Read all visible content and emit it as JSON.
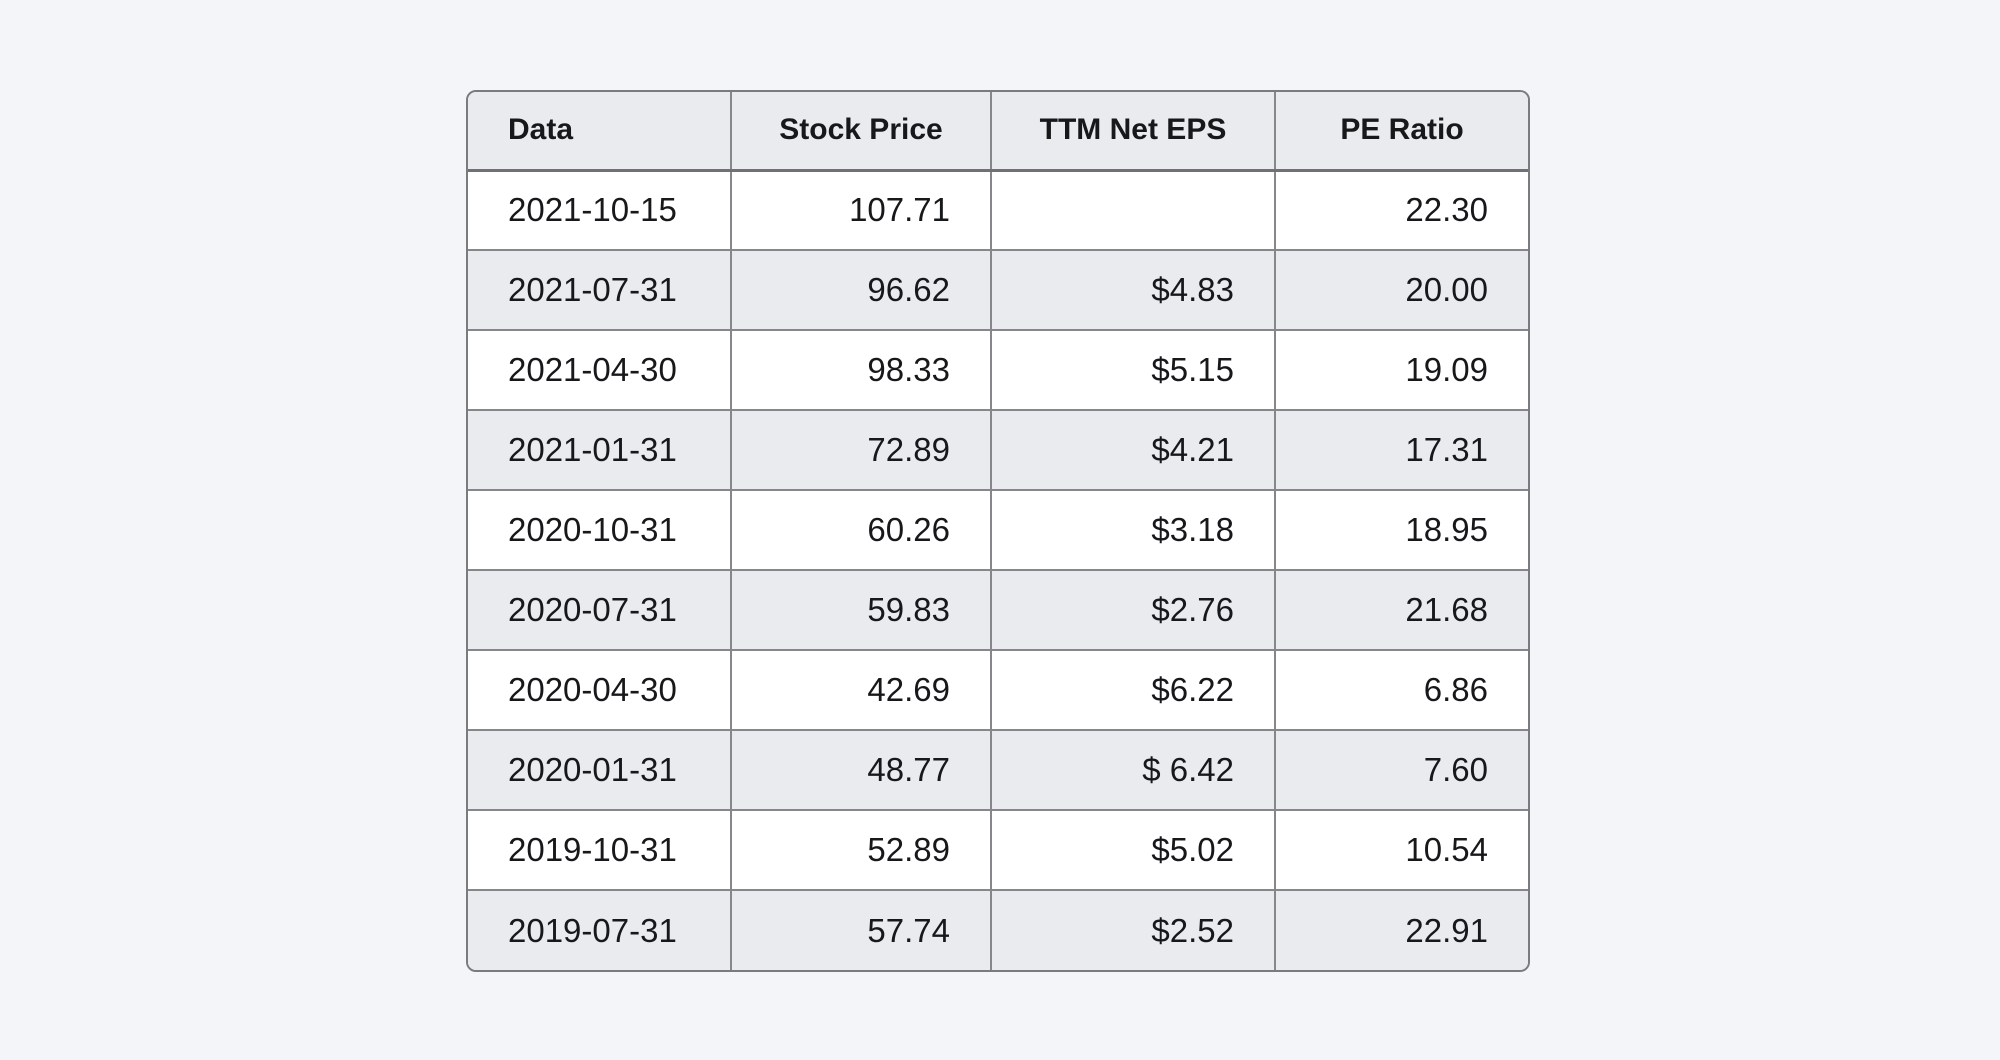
{
  "chart_data": {
    "type": "table",
    "columns": [
      "Data",
      "Stock Price",
      "TTM Net EPS",
      "PE Ratio"
    ],
    "rows": [
      [
        "2021-10-15",
        "107.71",
        "",
        "22.30"
      ],
      [
        "2021-07-31",
        "96.62",
        "$4.83",
        "20.00"
      ],
      [
        "2021-04-30",
        "98.33",
        "$5.15",
        "19.09"
      ],
      [
        "2021-01-31",
        "72.89",
        "$4.21",
        "17.31"
      ],
      [
        "2020-10-31",
        "60.26",
        "$3.18",
        "18.95"
      ],
      [
        "2020-07-31",
        "59.83",
        "$2.76",
        "21.68"
      ],
      [
        "2020-04-30",
        "42.69",
        "$6.22",
        "6.86"
      ],
      [
        "2020-01-31",
        "48.77",
        "$ 6.42",
        "7.60"
      ],
      [
        "2019-10-31",
        "52.89",
        "$5.02",
        "10.54"
      ],
      [
        "2019-07-31",
        "57.74",
        "$2.52",
        "22.91"
      ]
    ],
    "layout": {
      "striped": true,
      "first_row_stripe": "white",
      "date_align": "left",
      "number_align": "right",
      "header_align": [
        "left",
        "center",
        "center",
        "center"
      ]
    }
  },
  "colors": {
    "page-bg": "#f4f5f8",
    "row-alt": "#e9ebee",
    "row-white": "#ffffff",
    "grid-line": "#85878b",
    "outer-border": "#797b7e",
    "header-rule": "#6f7174",
    "text": "#17181a"
  }
}
